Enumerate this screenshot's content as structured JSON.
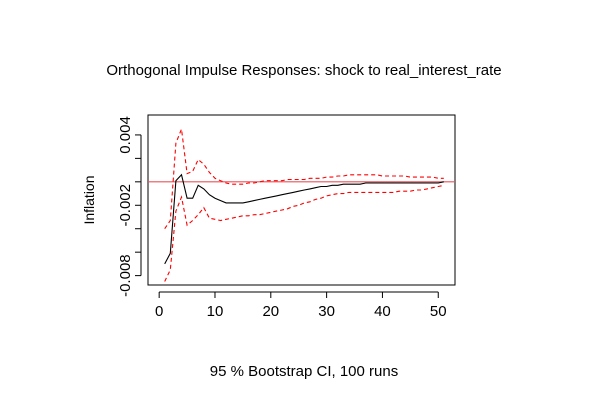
{
  "chart_data": {
    "type": "line",
    "title": "Orthogonal Impulse Responses: shock to real_interest_rate",
    "ylabel": "Inflation",
    "footer": "95 % Bootstrap CI,  100 runs",
    "xlim": [
      -2,
      53
    ],
    "ylim": [
      -0.0088,
      0.0057
    ],
    "x_ticks": [
      0,
      10,
      20,
      30,
      40,
      50
    ],
    "y_ticks": [
      -0.008,
      -0.006,
      -0.004,
      -0.002,
      0.0,
      0.002,
      0.004
    ],
    "y_tick_labels": [
      {
        "value": -0.008,
        "label": "-0.008"
      },
      {
        "value": -0.002,
        "label": "-0.002"
      },
      {
        "value": 0.004,
        "label": "0.004"
      }
    ],
    "reference_line": {
      "y": 0,
      "color": "#e8545a"
    },
    "colors": {
      "response": "#000000",
      "ci": "#ff0000"
    },
    "x": [
      1,
      2,
      3,
      4,
      5,
      6,
      7,
      8,
      9,
      10,
      11,
      12,
      13,
      14,
      15,
      16,
      17,
      18,
      19,
      20,
      21,
      22,
      23,
      24,
      25,
      26,
      27,
      28,
      29,
      30,
      31,
      32,
      33,
      34,
      35,
      36,
      37,
      38,
      39,
      40,
      41,
      42,
      43,
      44,
      45,
      46,
      47,
      48,
      49,
      50,
      51
    ],
    "series": [
      {
        "role": "response",
        "values": [
          -0.007,
          -0.0061,
          0.0001,
          0.0006,
          -0.0014,
          -0.0014,
          -0.0003,
          -0.0006,
          -0.0011,
          -0.0014,
          -0.0016,
          -0.0018,
          -0.0018,
          -0.0018,
          -0.0018,
          -0.0017,
          -0.0016,
          -0.0015,
          -0.0014,
          -0.0013,
          -0.0012,
          -0.0011,
          -0.001,
          -0.0009,
          -0.0008,
          -0.0007,
          -0.0006,
          -0.0005,
          -0.0004,
          -0.0004,
          -0.0003,
          -0.0003,
          -0.0002,
          -0.0002,
          -0.0002,
          -0.0002,
          -0.0001,
          -0.0001,
          -0.0001,
          -0.0001,
          -0.0001,
          -0.0001,
          -0.0001,
          -0.0001,
          -0.0001,
          -0.0001,
          -0.0001,
          -0.0001,
          -0.0001,
          -0.0001,
          0.0
        ]
      },
      {
        "role": "ci-upper",
        "values": [
          -0.004,
          -0.0033,
          0.0033,
          0.0045,
          0.0007,
          0.0009,
          0.0019,
          0.0015,
          0.0008,
          0.0003,
          0.0001,
          -0.0001,
          -0.0002,
          -0.0002,
          -0.0002,
          -0.0001,
          -0.0001,
          0.0,
          0.0001,
          0.0001,
          0.0001,
          0.0001,
          0.0002,
          0.0002,
          0.0002,
          0.0002,
          0.0003,
          0.0003,
          0.0003,
          0.0004,
          0.0004,
          0.0005,
          0.0005,
          0.0006,
          0.0006,
          0.0006,
          0.0006,
          0.0006,
          0.0006,
          0.0005,
          0.0005,
          0.0005,
          0.0005,
          0.0005,
          0.0004,
          0.0004,
          0.0004,
          0.0004,
          0.0004,
          0.0003,
          0.0003
        ]
      },
      {
        "role": "ci-lower",
        "values": [
          -0.0085,
          -0.0075,
          -0.0025,
          -0.0013,
          -0.0037,
          -0.0033,
          -0.0028,
          -0.0022,
          -0.0031,
          -0.0032,
          -0.0033,
          -0.0032,
          -0.0031,
          -0.003,
          -0.0029,
          -0.0029,
          -0.0028,
          -0.0028,
          -0.0027,
          -0.0026,
          -0.0025,
          -0.0024,
          -0.0023,
          -0.0021,
          -0.002,
          -0.0018,
          -0.0017,
          -0.0015,
          -0.0014,
          -0.0012,
          -0.0011,
          -0.001,
          -0.001,
          -0.0009,
          -0.0009,
          -0.0009,
          -0.0009,
          -0.0009,
          -0.0009,
          -0.0009,
          -0.0009,
          -0.0009,
          -0.0008,
          -0.0008,
          -0.0008,
          -0.0007,
          -0.0007,
          -0.0006,
          -0.0005,
          -0.0004,
          -0.0003
        ]
      }
    ]
  }
}
